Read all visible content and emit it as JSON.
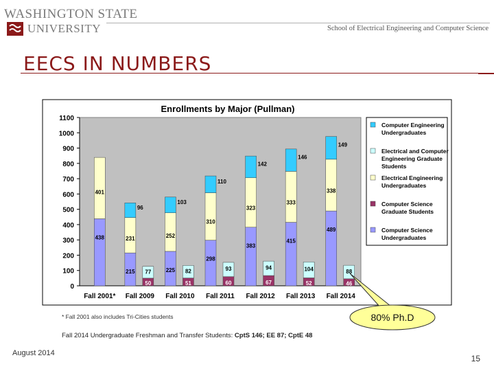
{
  "header": {
    "university_line1": "WASHINGTON STATE",
    "university_line2": "UNIVERSITY",
    "school": "School of Electrical Engineering and Computer Science"
  },
  "slide": {
    "title": "EECS IN NUMBERS",
    "footnote": "* Fall 2001 also includes Tri-Cities students",
    "note_prefix": "Fall 2014 Undergraduate Freshman and Transfer Students: ",
    "note_bold": "CptS 146; EE 87; CptE 48",
    "date": "August 2014",
    "page_number": "15",
    "callout": "80% Ph.D"
  },
  "colors": {
    "cs_undergrad": "#9999ff",
    "cs_grad": "#993366",
    "ee_undergrad": "#ffffcc",
    "eecpe_grad": "#ccffff",
    "cpe_undergrad": "#33ccff",
    "plot_bg": "#c0c0c0",
    "callout_fill": "#ffff99",
    "title": "#8b1a1a"
  },
  "chart_data": {
    "type": "bar",
    "stacked": true,
    "title": "Enrollments by Major (Pullman)",
    "categories": [
      "Fall 2001*",
      "Fall 2009",
      "Fall 2010",
      "Fall 2011",
      "Fall 2012",
      "Fall 2013",
      "Fall 2014"
    ],
    "ylim": [
      0,
      1100
    ],
    "yticks": [
      0,
      100,
      200,
      300,
      400,
      500,
      600,
      700,
      800,
      900,
      1000,
      1100
    ],
    "grid": false,
    "legend_position": "right",
    "undergrad_stack": [
      {
        "name": "Computer Science Undergraduates",
        "values": [
          438,
          215,
          225,
          298,
          383,
          415,
          489
        ]
      },
      {
        "name": "Electrical Engineering Undergraduates",
        "values": [
          401,
          231,
          252,
          310,
          323,
          333,
          338
        ]
      },
      {
        "name": "Computer Engineering Undergraduates",
        "values": [
          null,
          96,
          103,
          110,
          142,
          146,
          149
        ]
      }
    ],
    "grad_stack": [
      {
        "name": "Computer Science Graduate Students",
        "values": [
          null,
          50,
          51,
          60,
          67,
          52,
          46
        ]
      },
      {
        "name": "Electrical and Computer Engineering Graduate Students",
        "values": [
          null,
          77,
          82,
          93,
          94,
          104,
          88
        ]
      }
    ],
    "legend": [
      {
        "key": "cpe_undergrad",
        "label": "Computer Engineering Undergraduates"
      },
      {
        "key": "eecpe_grad",
        "label": "Electrical and Computer Engineering Graduate Students"
      },
      {
        "key": "ee_undergrad",
        "label": "Electrical Engineering Undergraduates"
      },
      {
        "key": "cs_grad",
        "label": "Computer Science Graduate Students"
      },
      {
        "key": "cs_undergrad",
        "label": "Computer Science Undergraduates"
      }
    ]
  }
}
